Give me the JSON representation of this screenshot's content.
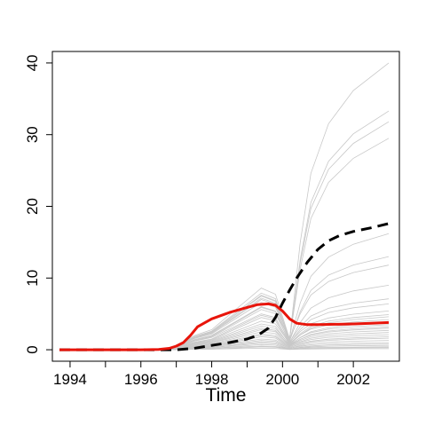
{
  "chart_data": {
    "type": "line",
    "title": "",
    "xlabel": "Time",
    "ylabel": "",
    "xlim": [
      1993.5,
      2003.3
    ],
    "ylim": [
      -1.6,
      41.6
    ],
    "x_ticks": [
      1994,
      1996,
      1998,
      2000,
      2002
    ],
    "x_minor_ticks": [
      1995,
      1997,
      1999,
      2001
    ],
    "x_tick_labels": [
      "1994",
      "1996",
      "1998",
      "2000",
      "2002"
    ],
    "y_ticks": [
      0,
      10,
      20,
      30,
      40
    ],
    "y_tick_labels": [
      "0",
      "10",
      "20",
      "30",
      "40"
    ],
    "grid": false,
    "legend": "none",
    "colors": {
      "individual": "#c8c8c8",
      "highlight": "#e8150b",
      "dashed": "#000000"
    },
    "series": [
      {
        "style": "solid-thick",
        "color": "#e8150b",
        "x": [
          1993.7,
          1995,
          1996,
          1996.5,
          1996.8,
          1997,
          1997.2,
          1997.4,
          1997.6,
          1998,
          1998.5,
          1999,
          1999.3,
          1999.6,
          1999.8,
          2000,
          2000.2,
          2000.4,
          2000.7,
          2001,
          2001.5,
          2002,
          2002.5,
          2003
        ],
        "y": [
          0,
          0,
          0,
          0.05,
          0.2,
          0.5,
          1.0,
          2.0,
          3.2,
          4.3,
          5.2,
          5.9,
          6.3,
          6.4,
          6.2,
          5.4,
          4.3,
          3.7,
          3.5,
          3.5,
          3.55,
          3.6,
          3.7,
          3.8
        ]
      },
      {
        "style": "dashed-thick",
        "color": "#000000",
        "x": [
          1993.7,
          1996,
          1997,
          1997.5,
          1998,
          1998.5,
          1999,
          1999.3,
          1999.6,
          1999.8,
          2000,
          2000.2,
          2000.4,
          2000.7,
          2001,
          2001.3,
          2001.6,
          2002,
          2002.5,
          2003
        ],
        "y": [
          0,
          0,
          0,
          0.2,
          0.6,
          1.0,
          1.5,
          2.0,
          3.0,
          4.5,
          6.5,
          8.3,
          10.0,
          12.2,
          14.0,
          15.2,
          15.9,
          16.5,
          17.0,
          17.6
        ]
      }
    ],
    "background_curves": [
      [
        0,
        2.5,
        7.5,
        1.5,
        40.0
      ],
      [
        0,
        2.6,
        7.9,
        1.4,
        33.3
      ],
      [
        0,
        2.4,
        7.2,
        1.6,
        31.8
      ],
      [
        0,
        2.8,
        8.6,
        1.5,
        29.5
      ],
      [
        0,
        2.2,
        6.6,
        1.3,
        16.2
      ],
      [
        0,
        2.5,
        7.6,
        1.2,
        13.0
      ],
      [
        0,
        2.0,
        6.0,
        1.4,
        11.8
      ],
      [
        0,
        2.3,
        7.0,
        1.0,
        9.0
      ],
      [
        0,
        1.8,
        5.6,
        1.1,
        7.1
      ],
      [
        0,
        1.9,
        5.9,
        0.9,
        6.4
      ],
      [
        0,
        1.5,
        4.8,
        1.0,
        5.4
      ],
      [
        0,
        1.7,
        5.0,
        0.8,
        4.9
      ],
      [
        0,
        1.4,
        4.5,
        0.7,
        4.6
      ],
      [
        0,
        1.3,
        4.0,
        0.9,
        4.2
      ],
      [
        0,
        1.2,
        3.6,
        0.6,
        3.8
      ],
      [
        0,
        1.1,
        3.3,
        0.7,
        3.5
      ],
      [
        0,
        1.0,
        3.0,
        0.5,
        3.2
      ],
      [
        0,
        0.9,
        2.8,
        0.6,
        3.0
      ],
      [
        0,
        0.8,
        2.5,
        0.5,
        2.7
      ],
      [
        0,
        0.7,
        2.2,
        0.4,
        2.4
      ],
      [
        0,
        0.6,
        2.0,
        0.4,
        2.1
      ],
      [
        0,
        0.5,
        1.8,
        0.3,
        1.8
      ],
      [
        0,
        0.5,
        1.5,
        0.3,
        1.6
      ],
      [
        0,
        0.4,
        1.3,
        0.2,
        1.3
      ],
      [
        0,
        0.3,
        1.1,
        0.2,
        1.0
      ],
      [
        0,
        0.3,
        0.9,
        0.1,
        0.8
      ],
      [
        0,
        0.2,
        0.7,
        0.1,
        0.6
      ],
      [
        0,
        0.2,
        0.5,
        0.1,
        0.4
      ],
      [
        0,
        0.1,
        0.4,
        0.05,
        0.3
      ],
      [
        0,
        0.1,
        0.2,
        0.05,
        0.15
      ]
    ]
  }
}
